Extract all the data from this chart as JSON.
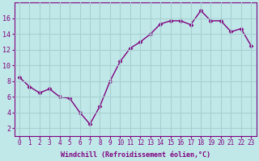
{
  "x": [
    0,
    1,
    2,
    3,
    4,
    5,
    6,
    7,
    8,
    9,
    10,
    11,
    12,
    13,
    14,
    15,
    16,
    17,
    18,
    19,
    20,
    21,
    22,
    23
  ],
  "y": [
    8.5,
    7.3,
    6.5,
    7.0,
    6.0,
    5.8,
    4.0,
    2.5,
    4.8,
    8.0,
    10.5,
    12.2,
    13.0,
    14.0,
    15.3,
    15.7,
    15.7,
    15.2,
    17.0,
    15.7,
    15.7,
    14.3,
    14.7,
    12.5
  ],
  "line_color": "#800080",
  "marker": "D",
  "marker_size": 2.5,
  "bg_color": "#c0e8e8",
  "grid_color": "#a8d0d0",
  "xlabel": "Windchill (Refroidissement éolien,°C)",
  "xlabel_color": "#800080",
  "tick_color": "#800080",
  "ylim": [
    1,
    18
  ],
  "xlim": [
    -0.5,
    23.5
  ],
  "yticks": [
    2,
    4,
    6,
    8,
    10,
    12,
    14,
    16
  ],
  "xticks": [
    0,
    1,
    2,
    3,
    4,
    5,
    6,
    7,
    8,
    9,
    10,
    11,
    12,
    13,
    14,
    15,
    16,
    17,
    18,
    19,
    20,
    21,
    22,
    23
  ],
  "xtick_labels": [
    "0",
    "1",
    "2",
    "3",
    "4",
    "5",
    "6",
    "7",
    "8",
    "9",
    "10",
    "11",
    "12",
    "13",
    "14",
    "15",
    "16",
    "17",
    "18",
    "19",
    "20",
    "21",
    "22",
    "23"
  ],
  "linewidth": 1.0,
  "tick_fontsize": 5.5,
  "xlabel_fontsize": 6.0
}
